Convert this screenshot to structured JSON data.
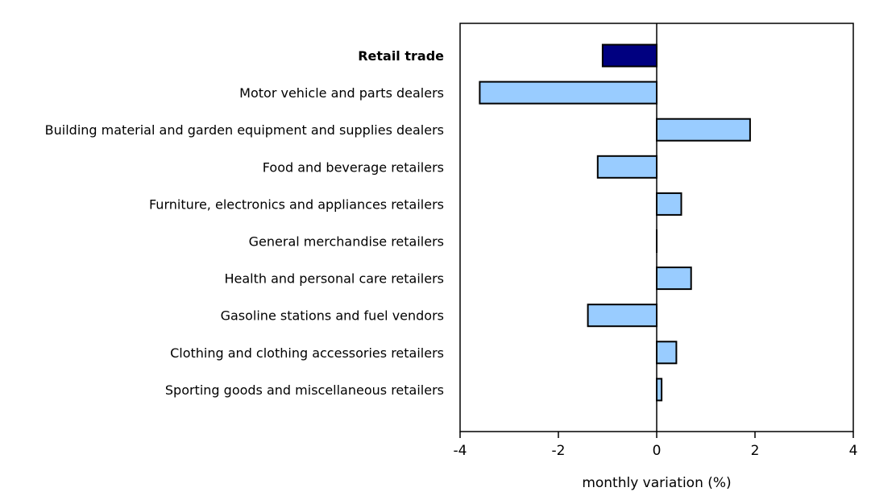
{
  "chart_data": {
    "type": "bar",
    "orientation": "horizontal",
    "categories": [
      "Retail trade",
      "Motor vehicle and parts dealers",
      "Building material and garden equipment and supplies dealers",
      "Food and beverage retailers",
      "Furniture, electronics and appliances retailers",
      "General merchandise retailers",
      "Health and personal care retailers",
      "Gasoline stations and fuel vendors",
      "Clothing and clothing accessories retailers",
      "Sporting goods and miscellaneous retailers"
    ],
    "values": [
      -1.1,
      -3.6,
      1.9,
      -1.2,
      0.5,
      0.0,
      0.7,
      -1.4,
      0.4,
      0.1
    ],
    "highlight_index": 0,
    "xlabel": "monthly variation (%)",
    "ylabel": "",
    "title": "",
    "xlim": [
      -4,
      4
    ],
    "xticks": [
      "-4",
      "-2",
      "0",
      "2",
      "4"
    ],
    "xtick_values": [
      -4,
      -2,
      0,
      2,
      4
    ],
    "grid": false,
    "colors": {
      "highlight": "#000080",
      "bar": "#99ccff",
      "outline": "#000000"
    }
  }
}
